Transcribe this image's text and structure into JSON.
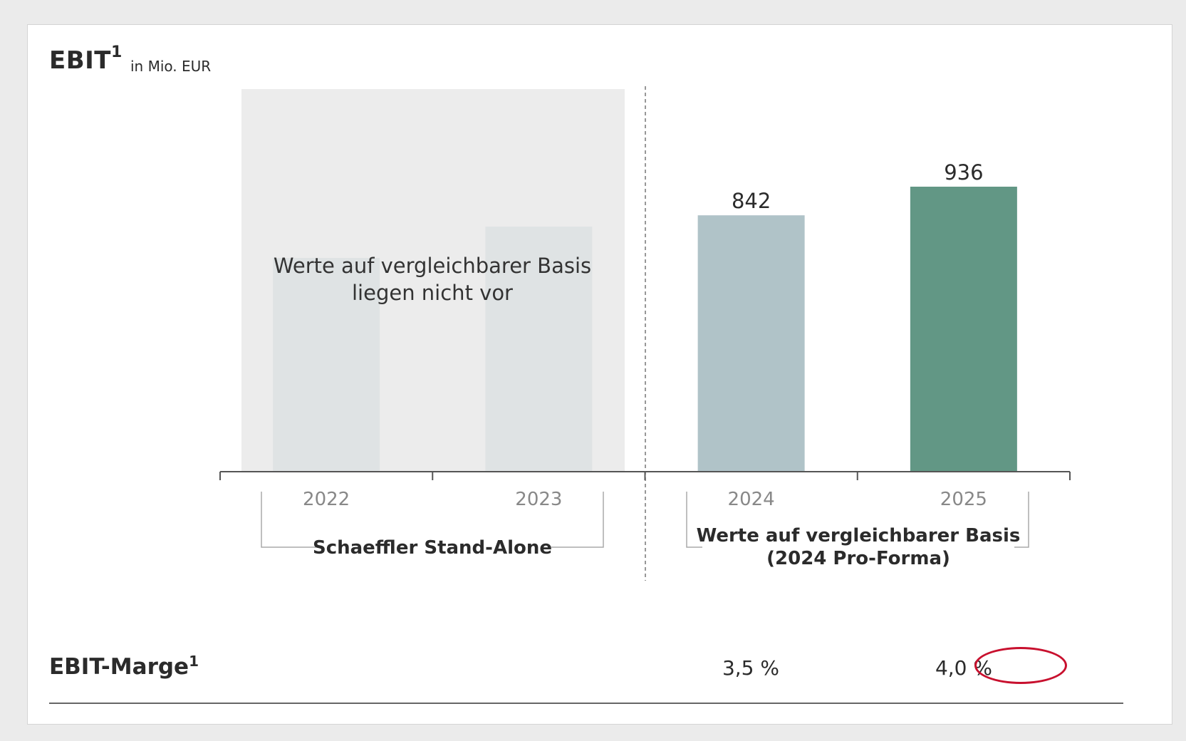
{
  "header": {
    "title": "EBIT",
    "title_footnote": "1",
    "unit": "in Mio. EUR"
  },
  "chart_data": {
    "type": "bar",
    "categories": [
      "2022",
      "2023",
      "2024",
      "2025"
    ],
    "values": [
      null,
      null,
      842,
      936
    ],
    "ghost_bar_relative_heights": [
      0.75,
      0.86
    ],
    "bar_colors": [
      "#dfe3e4",
      "#dfe3e4",
      "#b0c3c8",
      "#629785"
    ],
    "data_labels": [
      "",
      "",
      "842",
      "936"
    ],
    "overlay_text_line1": "Werte auf vergleichbarer Basis",
    "overlay_text_line2": "liegen nicht vor",
    "groups": [
      {
        "label": "Schaeffler Stand-Alone",
        "categories": [
          "2022",
          "2023"
        ]
      },
      {
        "label_line1": "Werte auf vergleichbarer Basis",
        "label_line2": "(2024 Pro-Forma)",
        "categories": [
          "2024",
          "2025"
        ]
      }
    ],
    "ylim": [
      0,
      936
    ]
  },
  "margin_row": {
    "label": "EBIT-Marge",
    "footnote": "1",
    "values": [
      "",
      "",
      "3,5 %",
      "4,0 %"
    ],
    "highlight_color": "#c8102e"
  }
}
